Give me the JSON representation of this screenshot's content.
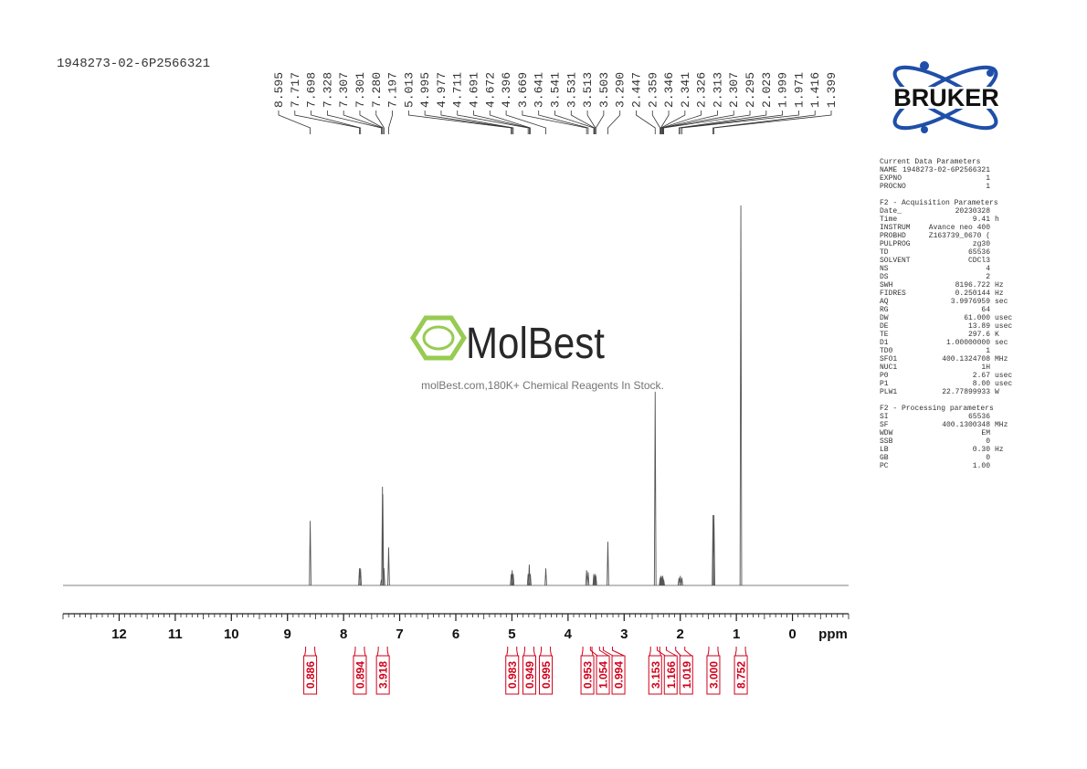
{
  "header": {
    "sample_id": "1948273-02-6P2566321"
  },
  "logo": {
    "brand": "BRUKER"
  },
  "watermark": {
    "brand": "MolBest",
    "tagline": "molBest.com,180K+ Chemical Reagents In Stock."
  },
  "parameters": {
    "sections": [
      {
        "title": "Current Data Parameters",
        "rows": [
          [
            "NAME",
            "1948273-02-6P2566321",
            ""
          ],
          [
            "EXPNO",
            "1",
            ""
          ],
          [
            "PROCNO",
            "1",
            ""
          ]
        ]
      },
      {
        "title": "F2 - Acquisition Parameters",
        "rows": [
          [
            "Date_",
            "20230328",
            ""
          ],
          [
            "Time",
            "9.41",
            "h"
          ],
          [
            "INSTRUM",
            "Avance neo 400",
            ""
          ],
          [
            "PROBHD",
            "Z163739_0670 (",
            ""
          ],
          [
            "PULPROG",
            "zg30",
            ""
          ],
          [
            "TD",
            "65536",
            ""
          ],
          [
            "SOLVENT",
            "CDCl3",
            ""
          ],
          [
            "NS",
            "4",
            ""
          ],
          [
            "DS",
            "2",
            ""
          ],
          [
            "SWH",
            "8196.722",
            "Hz"
          ],
          [
            "FIDRES",
            "0.250144",
            "Hz"
          ],
          [
            "AQ",
            "3.9976959",
            "sec"
          ],
          [
            "RG",
            "64",
            ""
          ],
          [
            "DW",
            "61.000",
            "usec"
          ],
          [
            "DE",
            "13.89",
            "usec"
          ],
          [
            "TE",
            "297.6",
            "K"
          ],
          [
            "D1",
            "1.00000000",
            "sec"
          ],
          [
            "TD0",
            "1",
            ""
          ],
          [
            "SFO1",
            "400.1324708",
            "MHz"
          ],
          [
            "NUC1",
            "1H",
            ""
          ],
          [
            "P0",
            "2.67",
            "usec"
          ],
          [
            "P1",
            "8.00",
            "usec"
          ],
          [
            "PLW1",
            "22.77899933",
            "W"
          ]
        ]
      },
      {
        "title": "F2 - Processing parameters",
        "rows": [
          [
            "SI",
            "65536",
            ""
          ],
          [
            "SF",
            "400.1300348",
            "MHz"
          ],
          [
            "WDW",
            "EM",
            ""
          ],
          [
            "SSB",
            "0",
            ""
          ],
          [
            "LB",
            "0.30",
            "Hz"
          ],
          [
            "GB",
            "0",
            ""
          ],
          [
            "PC",
            "1.00",
            ""
          ]
        ]
      }
    ]
  },
  "chart_data": {
    "type": "nmr",
    "x_label": "ppm",
    "xlim": [
      13,
      -1
    ],
    "xticks": [
      12,
      11,
      10,
      9,
      8,
      7,
      6,
      5,
      4,
      3,
      2,
      1,
      0
    ],
    "ylim": [
      0,
      100
    ],
    "color": "#555555",
    "x": [
      8.595,
      7.717,
      7.698,
      7.328,
      7.307,
      7.301,
      7.28,
      7.197,
      5.013,
      4.995,
      4.977,
      4.711,
      4.691,
      4.672,
      4.396,
      3.669,
      3.641,
      3.541,
      3.531,
      3.513,
      3.503,
      3.29,
      2.447,
      2.359,
      2.346,
      2.341,
      2.326,
      2.313,
      2.307,
      2.295,
      2.023,
      1.999,
      1.971,
      1.416,
      1.399,
      0.92
    ],
    "values": [
      17,
      4.5,
      4.5,
      1.5,
      26,
      24,
      4.5,
      10,
      3,
      4,
      3,
      3,
      5.5,
      3,
      4.5,
      4,
      3.5,
      3,
      2.5,
      3,
      2.5,
      11.5,
      51,
      2,
      2.5,
      2.5,
      2,
      2.5,
      2,
      1.5,
      2,
      2.5,
      2,
      18.5,
      18.5,
      100
    ],
    "peak_labels": [
      "8.595",
      "7.717",
      "7.698",
      "7.328",
      "7.307",
      "7.301",
      "7.280",
      "7.197",
      "5.013",
      "4.995",
      "4.977",
      "4.711",
      "4.691",
      "4.672",
      "4.396",
      "3.669",
      "3.641",
      "3.541",
      "3.531",
      "3.513",
      "3.503",
      "3.290",
      "2.447",
      "2.359",
      "2.346",
      "2.341",
      "2.326",
      "2.313",
      "2.307",
      "2.295",
      "2.023",
      "1.999",
      "1.971",
      "1.416",
      "1.399"
    ],
    "integral_color": "#d0021b",
    "integrals": [
      {
        "ppm": 8.595,
        "value": 0.886,
        "label": "0.886"
      },
      {
        "ppm": 7.71,
        "value": 0.894,
        "label": "0.894"
      },
      {
        "ppm": 7.3,
        "value": 3.918,
        "label": "3.918"
      },
      {
        "ppm": 4.995,
        "value": 0.983,
        "label": "0.983"
      },
      {
        "ppm": 4.69,
        "value": 0.949,
        "label": "0.949"
      },
      {
        "ppm": 4.396,
        "value": 0.995,
        "label": "0.995"
      },
      {
        "ppm": 3.655,
        "value": 0.953,
        "label": "0.953"
      },
      {
        "ppm": 3.52,
        "value": 1.054,
        "label": "1.054"
      },
      {
        "ppm": 3.29,
        "value": 0.994,
        "label": "0.994"
      },
      {
        "ppm": 2.447,
        "value": 3.153,
        "label": "3.153"
      },
      {
        "ppm": 2.33,
        "value": 1.166,
        "label": "1.166"
      },
      {
        "ppm": 2.0,
        "value": 1.019,
        "label": "1.019"
      },
      {
        "ppm": 1.41,
        "value": 3.0,
        "label": "3.000"
      },
      {
        "ppm": 0.92,
        "value": 8.752,
        "label": "8.752"
      }
    ]
  }
}
